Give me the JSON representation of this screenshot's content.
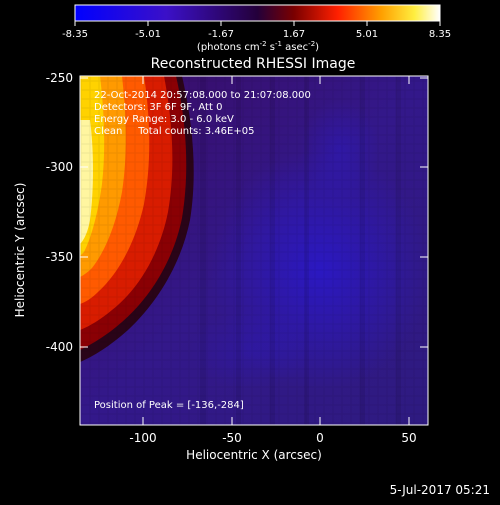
{
  "footer": {
    "date": "5-Jul-2017 05:21"
  },
  "colorbar": {
    "ticks": [
      "-8.35",
      "-5.01",
      "-1.67",
      "1.67",
      "5.01",
      "8.35"
    ],
    "unit_html_parts": [
      "(photons cm",
      "-2",
      " s",
      "-1",
      " asec",
      "-2",
      ")"
    ]
  },
  "annotations": {
    "line1": "22-Oct-2014 20:57:08.000 to 21:07:08.000",
    "line2": "Detectors: 3F 6F 9F, Att 0",
    "line3": "Energy Range: 3.0 - 6.0 keV",
    "line4": "Clean     Total counts: 3.46E+05",
    "peak": "Position of Peak = [-136,-284]"
  },
  "chart_data": {
    "type": "heatmap",
    "title": "Reconstructed RHESSI Image",
    "xlabel": "Heliocentric X (arcsec)",
    "ylabel": "Heliocentric Y (arcsec)",
    "xlim": [
      -136,
      58
    ],
    "ylim": [
      -248,
      -440
    ],
    "xticks": [
      -100,
      -50,
      0,
      50
    ],
    "yticks": [
      -250,
      -300,
      -350,
      -400
    ],
    "colorscale": "rainbow (blue-purple-red-orange-yellow-white)",
    "zlim": [
      -8.35,
      8.35
    ],
    "peak_position": [
      -136,
      -284
    ]
  }
}
